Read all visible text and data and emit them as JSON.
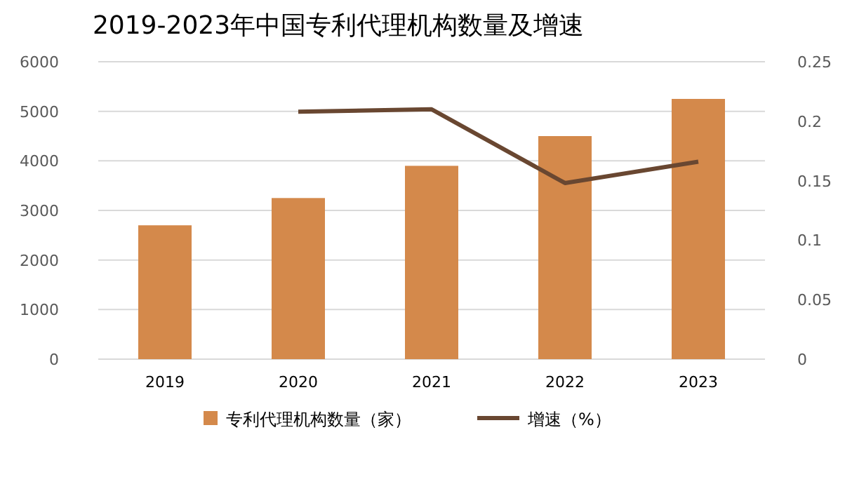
{
  "chart_data": {
    "type": "bar",
    "title": "2019-2023年中国专利代理机构数量及增速",
    "categories": [
      "2019",
      "2020",
      "2021",
      "2022",
      "2023"
    ],
    "series": [
      {
        "name": "专利代理机构数量（家）",
        "color": "#d4894b",
        "values": [
          2700,
          3250,
          3900,
          4500,
          5250
        ]
      },
      {
        "name": "增速（%）",
        "type": "line",
        "axis": "y2",
        "color": "#694731",
        "values": [
          null,
          0.208,
          0.21,
          0.148,
          0.166
        ]
      }
    ],
    "ylim": [
      0,
      6000
    ],
    "yticks": [
      0,
      1000,
      2000,
      3000,
      4000,
      5000,
      6000
    ],
    "y2lim": [
      0,
      0.25
    ],
    "y2ticks": [
      0,
      0.05,
      0.1,
      0.15,
      0.2,
      0.25
    ],
    "grid": "y",
    "legend": "bottom",
    "marker": "none"
  }
}
